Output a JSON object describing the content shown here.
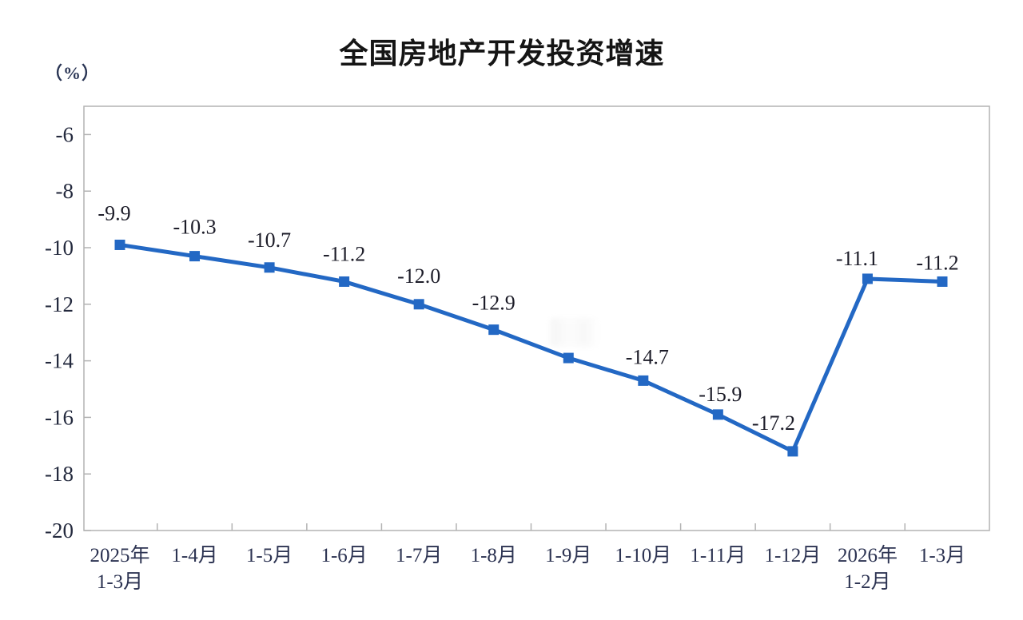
{
  "title": "全国房地产开发投资增速",
  "unit_label": "（%）",
  "chart_data": {
    "type": "line",
    "title": "全国房地产开发投资增速",
    "ylabel": "（%）",
    "xlabel": "",
    "categories": [
      "2025年\n1-3月",
      "1-4月",
      "1-5月",
      "1-6月",
      "1-7月",
      "1-8月",
      "1-9月",
      "1-10月",
      "1-11月",
      "1-12月",
      "2026年\n1-2月",
      "1-3月"
    ],
    "values": [
      -9.9,
      -10.3,
      -10.7,
      -11.2,
      -12.0,
      -12.9,
      -13.9,
      -14.7,
      -15.9,
      -17.2,
      -11.1,
      -11.2
    ],
    "data_labels": [
      "-9.9",
      "-10.3",
      "-10.7",
      "-11.2",
      "-12.0",
      "-12.9",
      "",
      "-14.7",
      "-15.9",
      "-17.2",
      "-11.1",
      "-11.2"
    ],
    "ylim": [
      -20,
      -5
    ],
    "yticks": [
      -6,
      -8,
      -10,
      -12,
      -14,
      -16,
      -18,
      -20
    ],
    "grid": false,
    "legend": "none",
    "marker": "square",
    "line_color": "#2368c4",
    "axis_color": "#b3b3b3",
    "data_label_color": "#1c1c28",
    "axis_text_color": "#2c3352"
  }
}
